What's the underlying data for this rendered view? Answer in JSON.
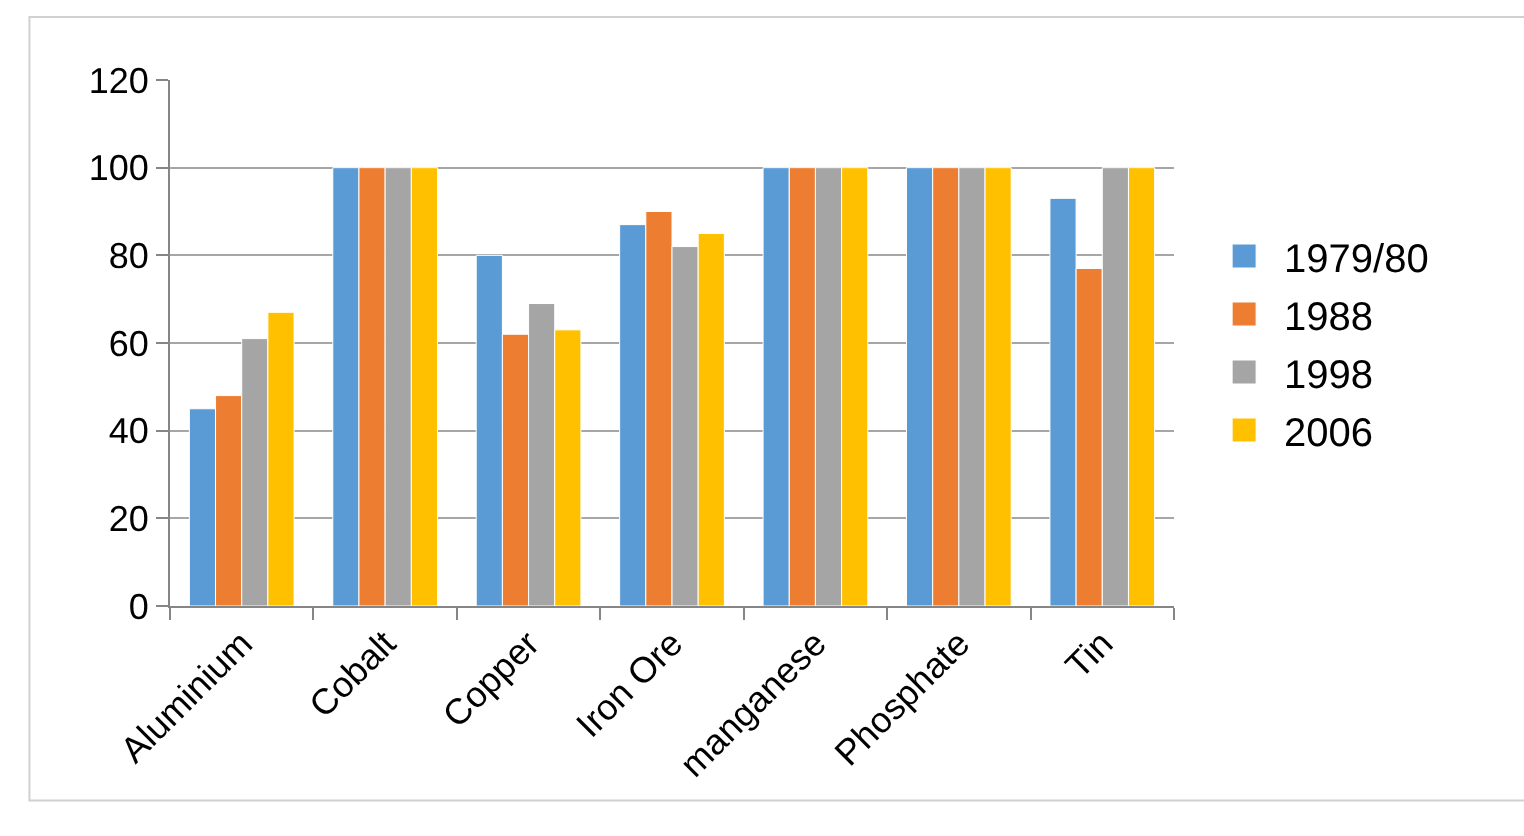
{
  "chart_data": {
    "type": "bar",
    "categories": [
      "Aluminium",
      "Cobalt",
      "Copper",
      "Iron Ore",
      "manganese",
      "Phosphate",
      "Tin"
    ],
    "series": [
      {
        "name": "1979/80",
        "color": "#5b9bd5",
        "values": [
          45,
          100,
          80,
          87,
          100,
          100,
          93
        ]
      },
      {
        "name": "1988",
        "color": "#ed7d31",
        "values": [
          48,
          100,
          62,
          90,
          100,
          100,
          77
        ]
      },
      {
        "name": "1998",
        "color": "#a5a5a5",
        "values": [
          61,
          100,
          69,
          82,
          100,
          100,
          100
        ]
      },
      {
        "name": "2006",
        "color": "#ffc000",
        "values": [
          67,
          100,
          63,
          85,
          100,
          100,
          100
        ]
      }
    ],
    "ylim": [
      0,
      120
    ],
    "yticks": [
      0,
      20,
      40,
      60,
      80,
      100,
      120
    ],
    "grid": "y",
    "legend": "right"
  }
}
